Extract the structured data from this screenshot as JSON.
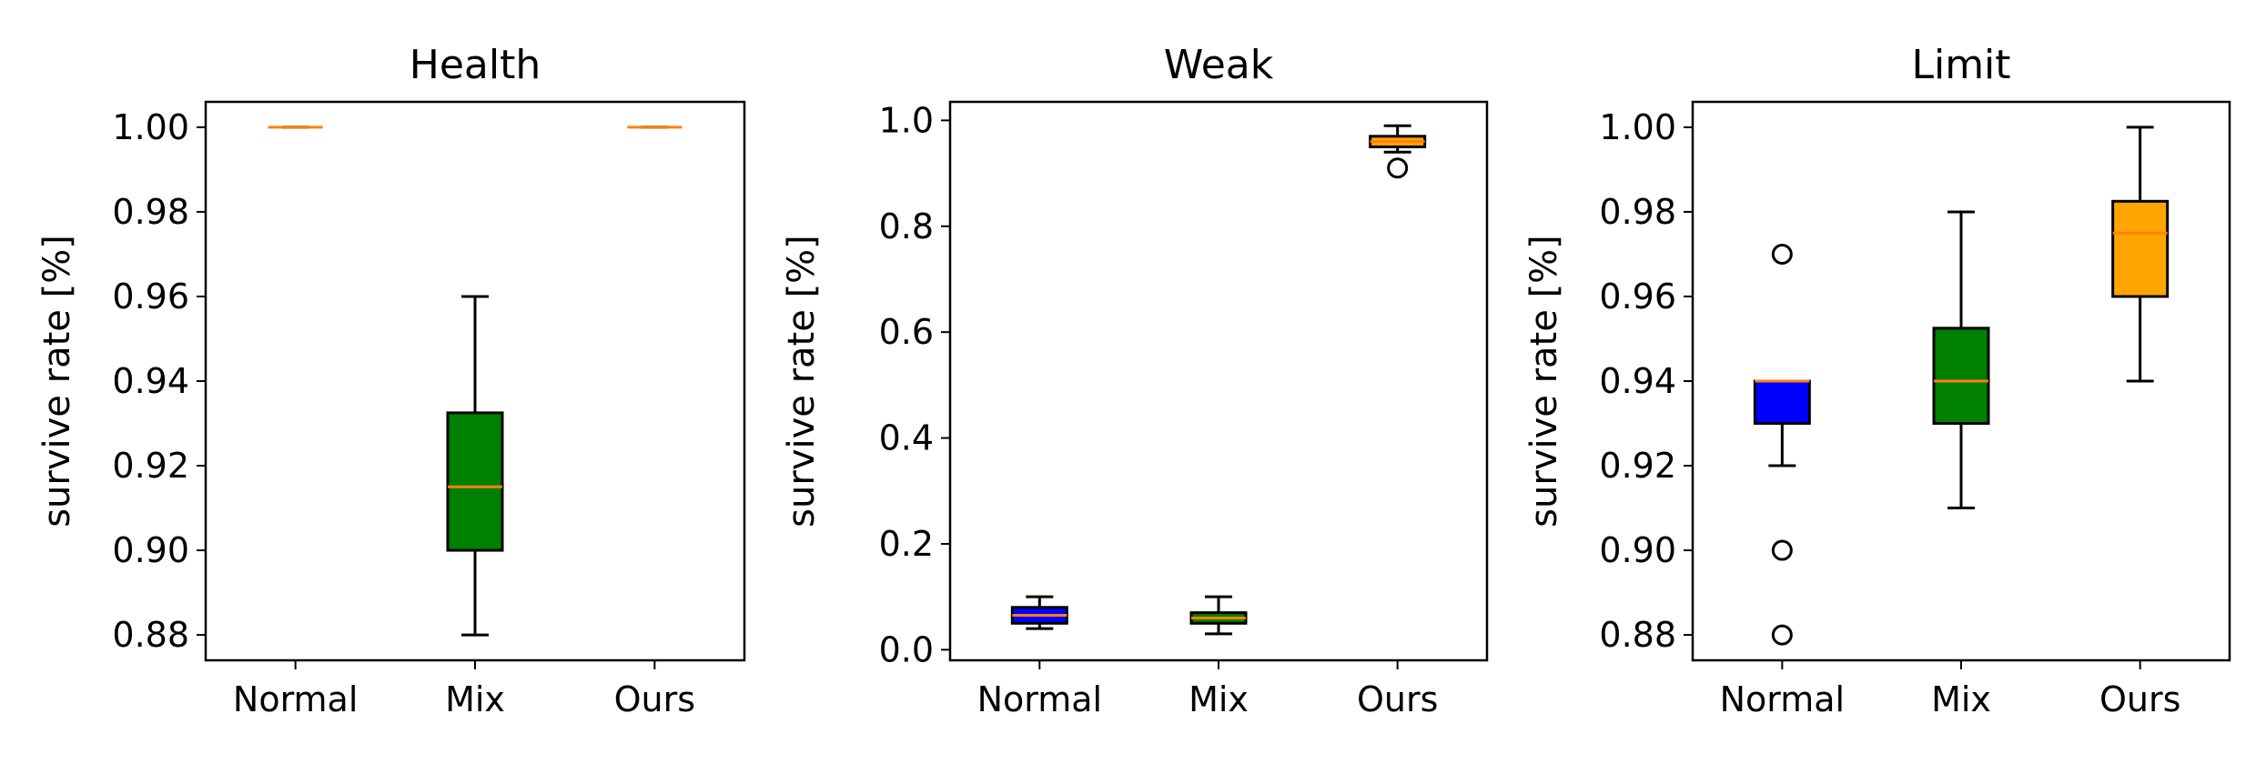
{
  "chart_data": [
    {
      "type": "box",
      "title": "Health",
      "ylabel": "survive rate [%]",
      "categories": [
        "Normal",
        "Mix",
        "Ours"
      ],
      "ylim": [
        0.874,
        1.006
      ],
      "yticks": [
        0.88,
        0.9,
        0.92,
        0.94,
        0.96,
        0.98,
        1.0
      ],
      "ytick_labels": [
        "0.88",
        "0.90",
        "0.92",
        "0.94",
        "0.96",
        "0.98",
        "1.00"
      ],
      "boxes": [
        {
          "category": "Normal",
          "color": "#0000ff",
          "whisker_low": 1.0,
          "q1": 1.0,
          "median": 1.0,
          "q3": 1.0,
          "whisker_high": 1.0,
          "outliers": []
        },
        {
          "category": "Mix",
          "color": "#008000",
          "whisker_low": 0.88,
          "q1": 0.9,
          "median": 0.915,
          "q3": 0.9325,
          "whisker_high": 0.96,
          "outliers": []
        },
        {
          "category": "Ours",
          "color": "#ffa500",
          "whisker_low": 1.0,
          "q1": 1.0,
          "median": 1.0,
          "q3": 1.0,
          "whisker_high": 1.0,
          "outliers": []
        }
      ]
    },
    {
      "type": "box",
      "title": "Weak",
      "ylabel": "survive rate [%]",
      "categories": [
        "Normal",
        "Mix",
        "Ours"
      ],
      "ylim": [
        -0.02,
        1.035
      ],
      "yticks": [
        0.0,
        0.2,
        0.4,
        0.6,
        0.8,
        1.0
      ],
      "ytick_labels": [
        "0.0",
        "0.2",
        "0.4",
        "0.6",
        "0.8",
        "1.0"
      ],
      "boxes": [
        {
          "category": "Normal",
          "color": "#0000ff",
          "whisker_low": 0.04,
          "q1": 0.05,
          "median": 0.065,
          "q3": 0.08,
          "whisker_high": 0.1,
          "outliers": []
        },
        {
          "category": "Mix",
          "color": "#008000",
          "whisker_low": 0.03,
          "q1": 0.05,
          "median": 0.06,
          "q3": 0.07,
          "whisker_high": 0.1,
          "outliers": []
        },
        {
          "category": "Ours",
          "color": "#ffa500",
          "whisker_low": 0.94,
          "q1": 0.95,
          "median": 0.96,
          "q3": 0.97,
          "whisker_high": 0.99,
          "outliers": [
            0.91
          ]
        }
      ]
    },
    {
      "type": "box",
      "title": "Limit",
      "ylabel": "survive rate [%]",
      "categories": [
        "Normal",
        "Mix",
        "Ours"
      ],
      "ylim": [
        0.874,
        1.006
      ],
      "yticks": [
        0.88,
        0.9,
        0.92,
        0.94,
        0.96,
        0.98,
        1.0
      ],
      "ytick_labels": [
        "0.88",
        "0.90",
        "0.92",
        "0.94",
        "0.96",
        "0.98",
        "1.00"
      ],
      "boxes": [
        {
          "category": "Normal",
          "color": "#0000ff",
          "whisker_low": 0.92,
          "q1": 0.93,
          "median": 0.94,
          "q3": 0.94,
          "whisker_high": 0.94,
          "outliers": [
            0.97,
            0.9,
            0.88
          ]
        },
        {
          "category": "Mix",
          "color": "#008000",
          "whisker_low": 0.91,
          "q1": 0.93,
          "median": 0.94,
          "q3": 0.9525,
          "whisker_high": 0.98,
          "outliers": []
        },
        {
          "category": "Ours",
          "color": "#ffa500",
          "whisker_low": 0.94,
          "q1": 0.96,
          "median": 0.975,
          "q3": 0.9825,
          "whisker_high": 1.0,
          "outliers": []
        }
      ]
    }
  ],
  "style": {
    "median_color": "#ff7f0e",
    "edge_color": "#000000",
    "grid": false
  }
}
